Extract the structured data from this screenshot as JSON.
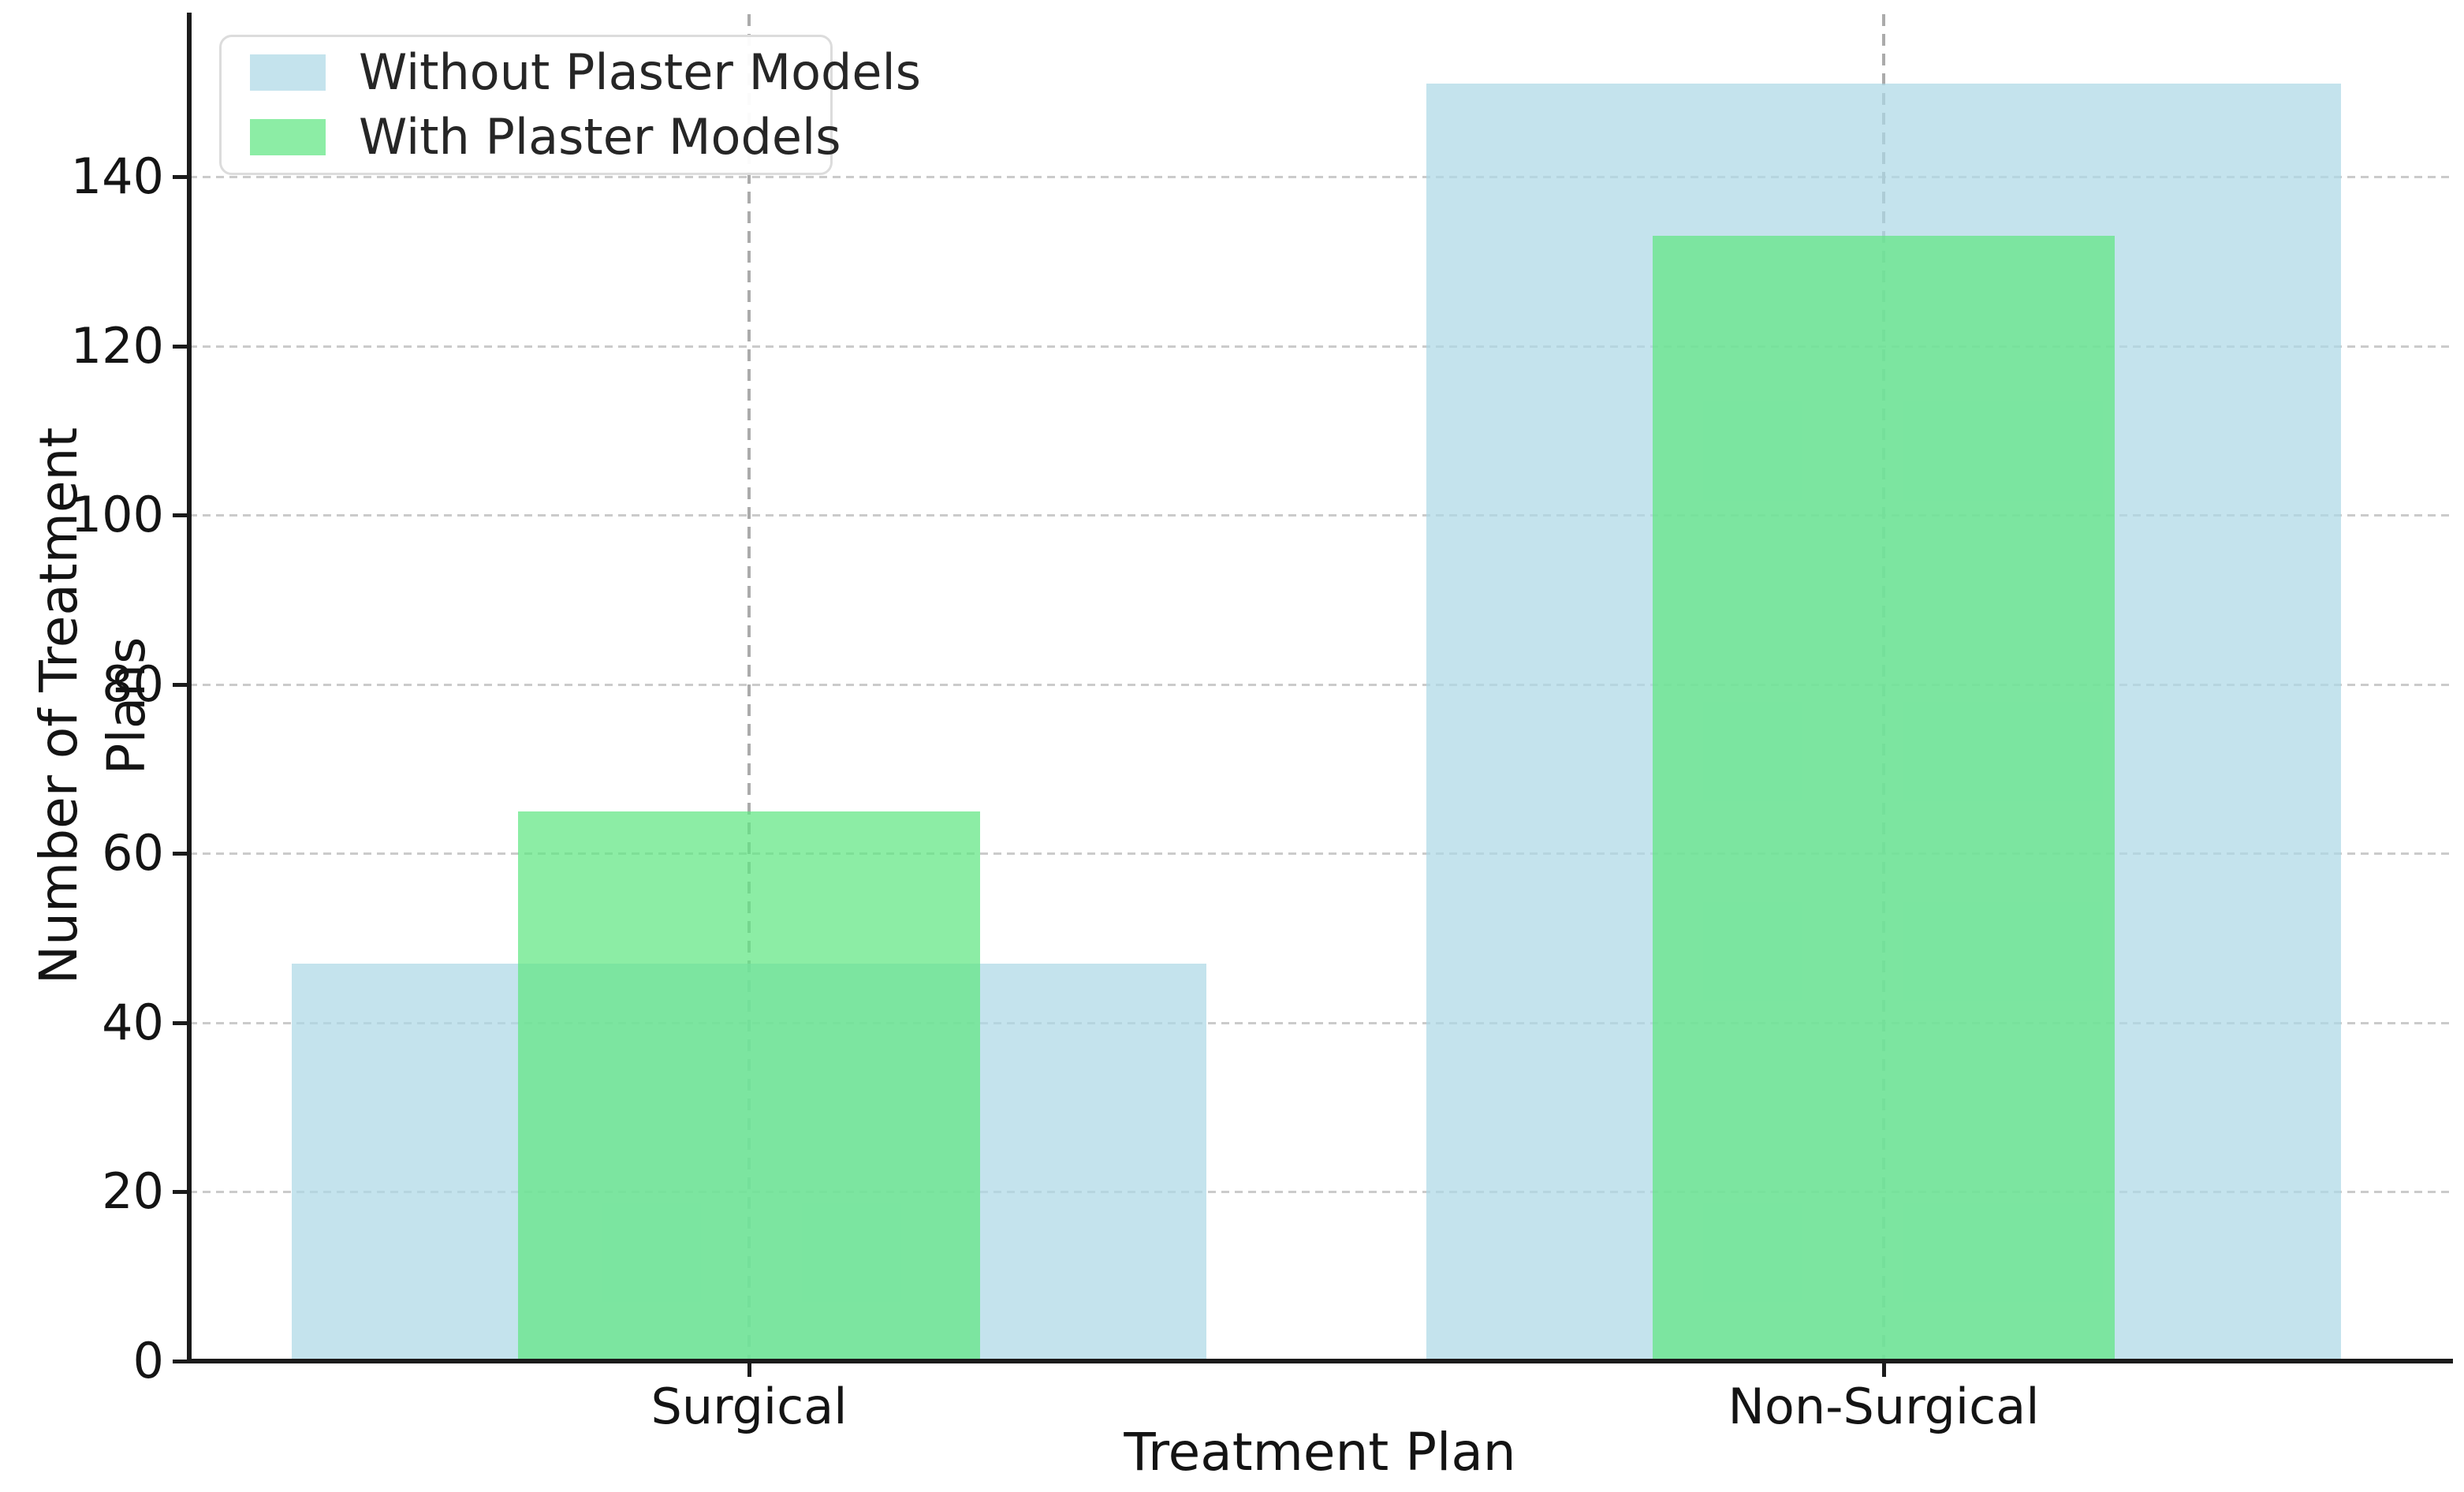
{
  "figure": {
    "background": "#ffffff",
    "text_color": "#141414",
    "spine_color": "#1b1b1b",
    "h_grid_color": "#cbcbcb",
    "v_grid_color": "#ababab",
    "legend_border_color": "#dcdcdc"
  },
  "chart_data": {
    "type": "bar",
    "title": "",
    "categories": [
      "Surgical",
      "Non-Surgical"
    ],
    "series": [
      {
        "name": "Without Plaster Models",
        "values": [
          47,
          151
        ],
        "color": "#ADD8E6",
        "alpha": 0.72
      },
      {
        "name": "With Plaster Models",
        "values": [
          65,
          133
        ],
        "color": "#5FE682",
        "alpha": 0.72
      }
    ],
    "xlabel": "Treatment Plan",
    "ylabel": "Number of Treatment Plans",
    "yticks": [
      0,
      20,
      40,
      60,
      80,
      100,
      120,
      140
    ],
    "ylim": [
      0,
      159.2
    ],
    "grid": "dashed",
    "grid_on": true,
    "legend_position": "upper-left",
    "bar_mode": "overlaid-centered"
  }
}
